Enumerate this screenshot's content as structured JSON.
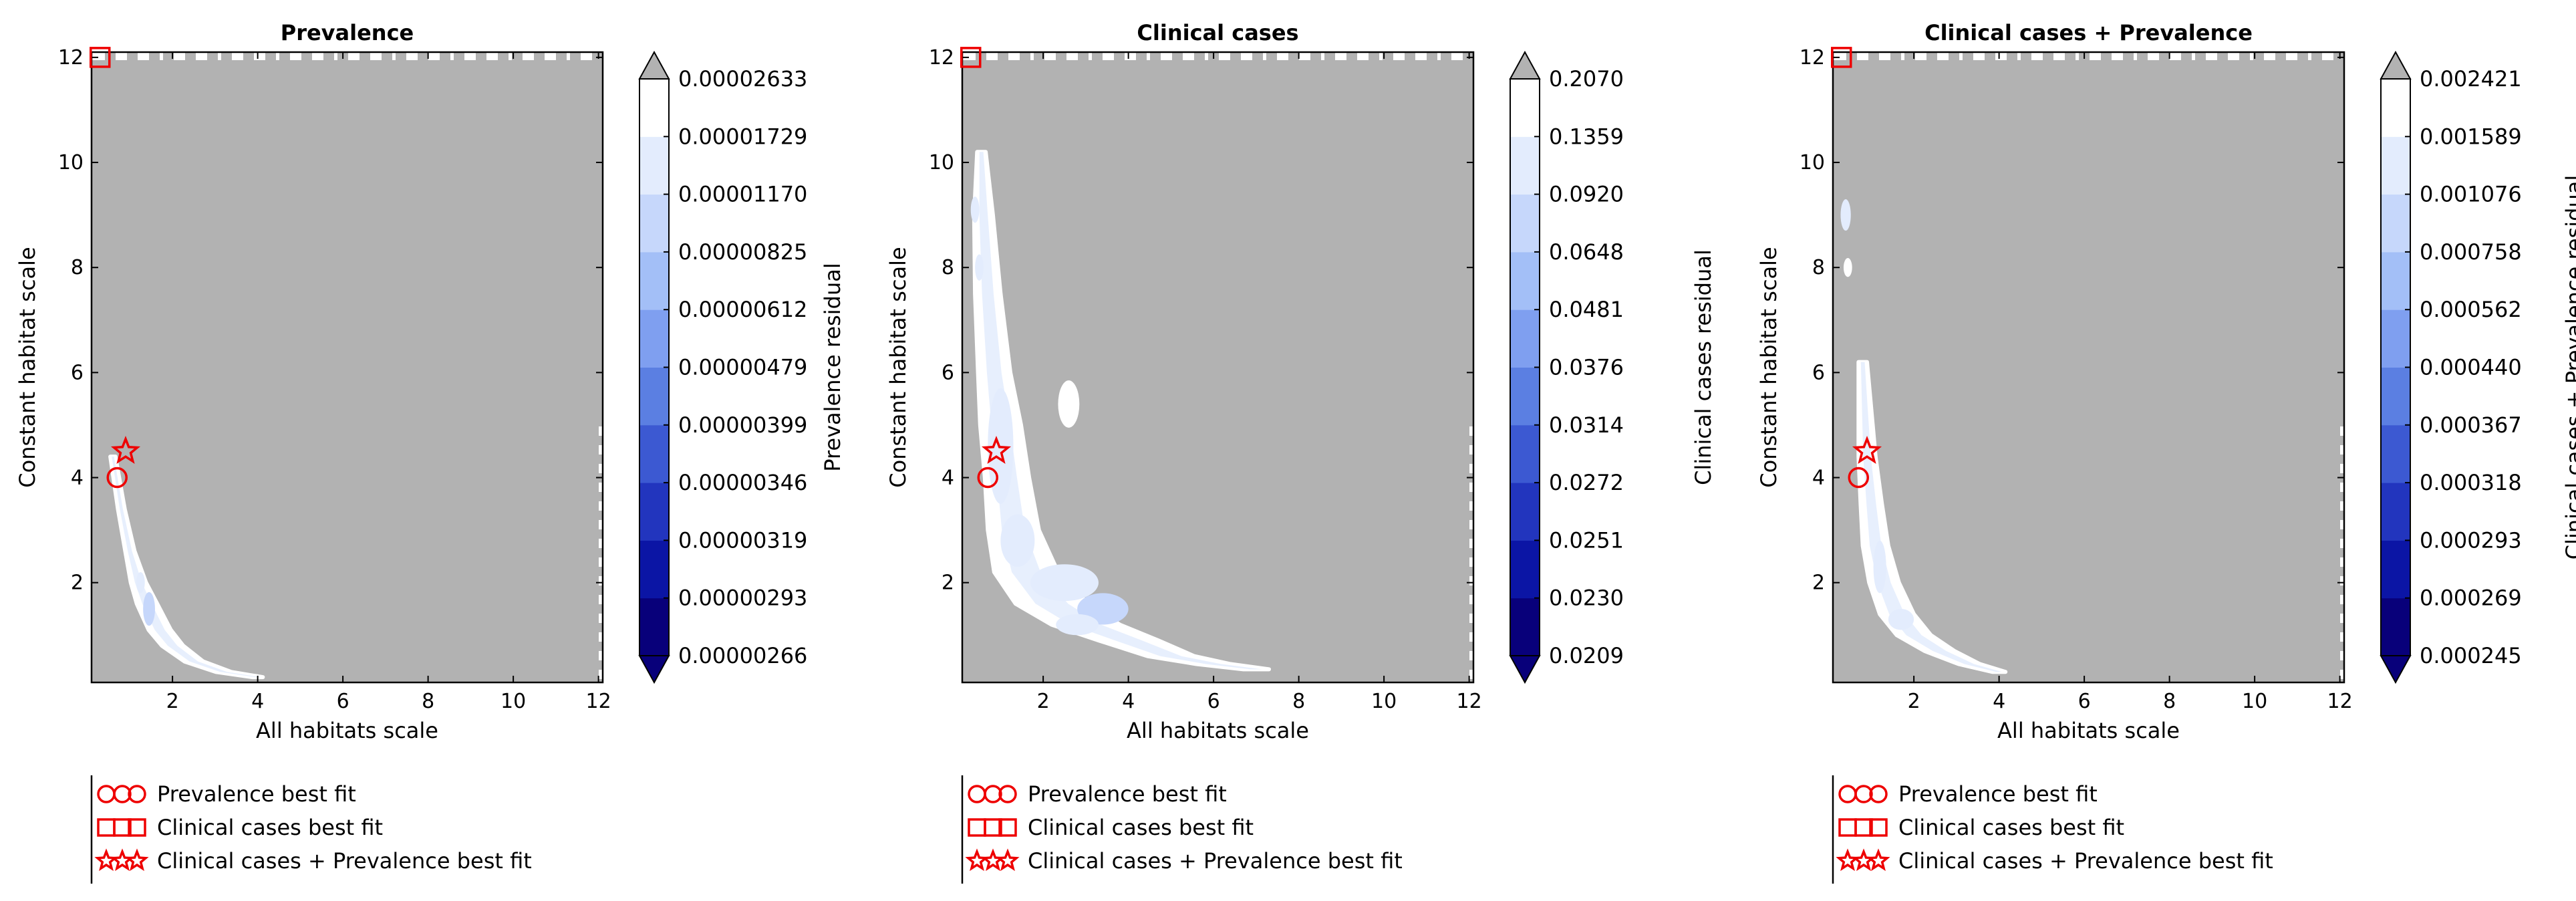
{
  "palette": {
    "background_gray": "#b2b2b2",
    "white": "#ffffff",
    "levels": [
      "#08007a",
      "#0b15a5",
      "#2235be",
      "#3c59d2",
      "#5b7fe2",
      "#7f9ff0",
      "#a3bff7",
      "#c6d7fb",
      "#e3ecfd",
      "#ffffff"
    ],
    "marker": "#ee0000"
  },
  "legend_entries": [
    {
      "marker": "circle",
      "label": "Prevalence best fit"
    },
    {
      "marker": "square",
      "label": "Clinical cases best fit"
    },
    {
      "marker": "star",
      "label": "Clinical cases + Prevalence best fit"
    }
  ],
  "chart_data": [
    {
      "type": "contour",
      "title": "Prevalence",
      "xlabel": "All habitats scale",
      "ylabel": "Constant habitat scale",
      "colorbar_label": "Prevalence residual",
      "xlim": [
        0.1,
        12.1
      ],
      "ylim": [
        0.1,
        12.1
      ],
      "xticks": [
        2,
        4,
        6,
        8,
        10,
        12
      ],
      "yticks": [
        2,
        4,
        6,
        8,
        10,
        12
      ],
      "colorbar_ticks": [
        "0.00000266",
        "0.00000293",
        "0.00000319",
        "0.00000346",
        "0.00000399",
        "0.00000479",
        "0.00000612",
        "0.00000825",
        "0.00001170",
        "0.00001729",
        "0.00002633"
      ],
      "best_fits": {
        "prevalence": [
          0.7,
          4.0
        ],
        "clinical_cases": [
          0.3,
          12.0
        ],
        "clinical_cases_plus_prevalence": [
          0.9,
          4.5
        ]
      },
      "valley": {
        "center": [
          [
            0.6,
            4.4
          ],
          [
            0.8,
            3.4
          ],
          [
            1.0,
            2.6
          ],
          [
            1.2,
            2.0
          ],
          [
            1.4,
            1.6
          ],
          [
            1.7,
            1.1
          ],
          [
            2.0,
            0.8
          ],
          [
            2.5,
            0.5
          ],
          [
            3.2,
            0.3
          ],
          [
            4.0,
            0.2
          ]
        ],
        "half_width": [
          0.06,
          0.08,
          0.11,
          0.18,
          0.24,
          0.26,
          0.25,
          0.22,
          0.18,
          0.12
        ],
        "islands": [
          {
            "x": 1.45,
            "y": 1.5,
            "rx": 0.14,
            "ry": 0.32,
            "level": 7
          },
          {
            "x": 1.25,
            "y": 2.0,
            "rx": 0.1,
            "ry": 0.2,
            "level": 8
          }
        ]
      }
    },
    {
      "type": "contour",
      "title": "Clinical cases",
      "xlabel": "All habitats scale",
      "ylabel": "Constant habitat scale",
      "colorbar_label": "Clinical cases residual",
      "xlim": [
        0.1,
        12.1
      ],
      "ylim": [
        0.1,
        12.1
      ],
      "xticks": [
        2,
        4,
        6,
        8,
        10,
        12
      ],
      "yticks": [
        2,
        4,
        6,
        8,
        10,
        12
      ],
      "colorbar_ticks": [
        "0.0209",
        "0.0230",
        "0.0251",
        "0.0272",
        "0.0314",
        "0.0376",
        "0.0481",
        "0.0648",
        "0.0920",
        "0.1359",
        "0.2070"
      ],
      "best_fits": {
        "prevalence": [
          0.7,
          4.0
        ],
        "clinical_cases": [
          0.3,
          12.0
        ],
        "clinical_cases_plus_prevalence": [
          0.9,
          4.5
        ]
      },
      "valley": {
        "center": [
          [
            0.55,
            10.2
          ],
          [
            0.6,
            9.0
          ],
          [
            0.7,
            7.5
          ],
          [
            0.85,
            6.0
          ],
          [
            1.0,
            5.0
          ],
          [
            1.15,
            4.0
          ],
          [
            1.3,
            3.0
          ],
          [
            1.6,
            2.2
          ],
          [
            2.2,
            1.6
          ],
          [
            3.0,
            1.2
          ],
          [
            4.0,
            0.9
          ],
          [
            5.0,
            0.6
          ],
          [
            6.0,
            0.45
          ],
          [
            7.0,
            0.35
          ]
        ],
        "half_width": [
          0.1,
          0.22,
          0.3,
          0.38,
          0.48,
          0.52,
          0.6,
          0.75,
          0.85,
          0.8,
          0.7,
          0.55,
          0.4,
          0.3
        ],
        "islands": [
          {
            "x": 1.0,
            "y": 4.6,
            "rx": 0.3,
            "ry": 1.1,
            "level": 8
          },
          {
            "x": 1.4,
            "y": 2.8,
            "rx": 0.4,
            "ry": 0.5,
            "level": 8
          },
          {
            "x": 2.5,
            "y": 2.0,
            "rx": 0.8,
            "ry": 0.35,
            "level": 8
          },
          {
            "x": 3.4,
            "y": 1.5,
            "rx": 0.6,
            "ry": 0.3,
            "level": 7
          },
          {
            "x": 2.8,
            "y": 1.2,
            "rx": 0.5,
            "ry": 0.2,
            "level": 8
          },
          {
            "x": 0.5,
            "y": 8.0,
            "rx": 0.1,
            "ry": 0.25,
            "level": 8
          },
          {
            "x": 0.4,
            "y": 9.1,
            "rx": 0.1,
            "ry": 0.25,
            "level": 8
          },
          {
            "x": 2.6,
            "y": 5.4,
            "rx": 0.25,
            "ry": 0.45,
            "level": 9
          }
        ]
      }
    },
    {
      "type": "contour",
      "title": "Clinical cases + Prevalence",
      "xlabel": "All habitats scale",
      "ylabel": "Constant habitat scale",
      "colorbar_label": "Clinical cases + Prevalence residual",
      "xlim": [
        0.1,
        12.1
      ],
      "ylim": [
        0.1,
        12.1
      ],
      "xticks": [
        2,
        4,
        6,
        8,
        10,
        12
      ],
      "yticks": [
        2,
        4,
        6,
        8,
        10,
        12
      ],
      "colorbar_ticks": [
        "0.000245",
        "0.000269",
        "0.000293",
        "0.000318",
        "0.000367",
        "0.000440",
        "0.000562",
        "0.000758",
        "0.001076",
        "0.001589",
        "0.002421"
      ],
      "best_fits": {
        "prevalence": [
          0.7,
          4.0
        ],
        "clinical_cases": [
          0.3,
          12.0
        ],
        "clinical_cases_plus_prevalence": [
          0.9,
          4.5
        ]
      },
      "valley": {
        "center": [
          [
            0.8,
            6.2
          ],
          [
            0.85,
            5.3
          ],
          [
            0.9,
            4.4
          ],
          [
            1.0,
            3.5
          ],
          [
            1.1,
            2.7
          ],
          [
            1.3,
            2.0
          ],
          [
            1.6,
            1.4
          ],
          [
            2.0,
            1.0
          ],
          [
            2.6,
            0.7
          ],
          [
            3.3,
            0.45
          ],
          [
            4.0,
            0.3
          ]
        ],
        "half_width": [
          0.1,
          0.15,
          0.2,
          0.25,
          0.3,
          0.35,
          0.4,
          0.4,
          0.35,
          0.25,
          0.15
        ],
        "islands": [
          {
            "x": 1.2,
            "y": 2.3,
            "rx": 0.15,
            "ry": 0.5,
            "level": 8
          },
          {
            "x": 1.7,
            "y": 1.3,
            "rx": 0.3,
            "ry": 0.2,
            "level": 8
          },
          {
            "x": 0.4,
            "y": 9.0,
            "rx": 0.12,
            "ry": 0.3,
            "level": 8
          },
          {
            "x": 0.45,
            "y": 8.0,
            "rx": 0.1,
            "ry": 0.18,
            "level": 9
          }
        ]
      }
    }
  ]
}
